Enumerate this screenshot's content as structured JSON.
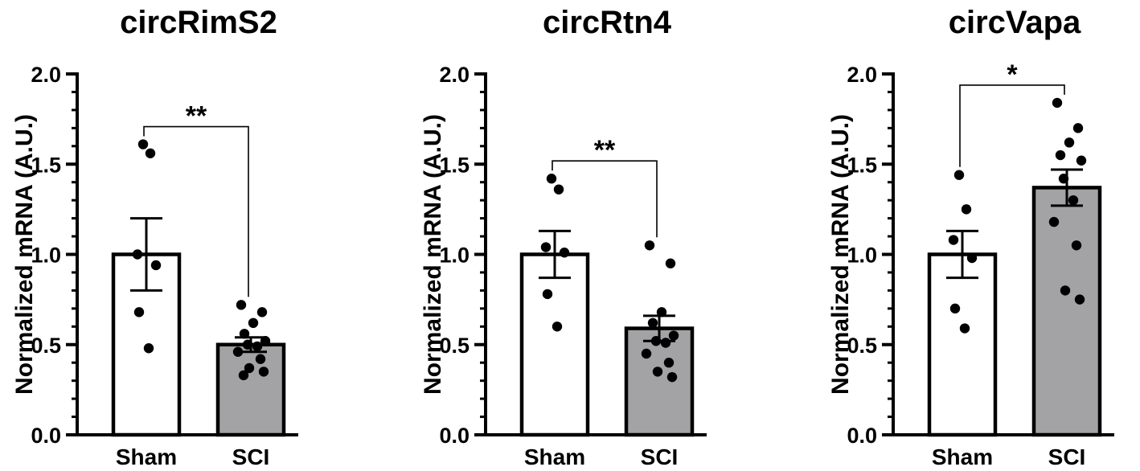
{
  "chart_data": [
    {
      "type": "bar",
      "title": "circRimS2",
      "ylabel": "Normalized mRNA (A.U.)",
      "ylim": [
        0,
        2.0
      ],
      "yticks": [
        "0.0",
        "0.5",
        "1.0",
        "1.5",
        "2.0"
      ],
      "categories": [
        "Sham",
        "SCI"
      ],
      "values": [
        1.0,
        0.5
      ],
      "sem": [
        0.2,
        0.04
      ],
      "bar_colors": [
        "#ffffff",
        "#a3a3a6"
      ],
      "points": [
        [
          1.61,
          1.56,
          1.0,
          0.94,
          0.68,
          0.48
        ],
        [
          0.72,
          0.68,
          0.62,
          0.56,
          0.52,
          0.5,
          0.49,
          0.46,
          0.42,
          0.37,
          0.35,
          0.33
        ]
      ],
      "significance": "**"
    },
    {
      "type": "bar",
      "title": "circRtn4",
      "ylabel": "Normalized mRNA (A.U.)",
      "ylim": [
        0,
        2.0
      ],
      "yticks": [
        "0.0",
        "0.5",
        "1.0",
        "1.5",
        "2.0"
      ],
      "categories": [
        "Sham",
        "SCI"
      ],
      "values": [
        1.0,
        0.59
      ],
      "sem": [
        0.13,
        0.07
      ],
      "bar_colors": [
        "#ffffff",
        "#a3a3a6"
      ],
      "points": [
        [
          1.42,
          1.36,
          1.04,
          1.01,
          0.78,
          0.6
        ],
        [
          1.05,
          0.95,
          0.68,
          0.62,
          0.55,
          0.52,
          0.51,
          0.45,
          0.4,
          0.35,
          0.32
        ]
      ],
      "significance": "**"
    },
    {
      "type": "bar",
      "title": "circVapa",
      "ylabel": "Normalized mRNA (A.U.)",
      "ylim": [
        0,
        2.0
      ],
      "yticks": [
        "0.0",
        "0.5",
        "1.0",
        "1.5",
        "2.0"
      ],
      "categories": [
        "Sham",
        "SCI"
      ],
      "values": [
        1.0,
        1.37
      ],
      "sem": [
        0.13,
        0.1
      ],
      "bar_colors": [
        "#ffffff",
        "#a3a3a6"
      ],
      "points": [
        [
          1.44,
          1.25,
          1.08,
          0.98,
          0.7,
          0.59
        ],
        [
          1.84,
          1.7,
          1.62,
          1.55,
          1.52,
          1.42,
          1.3,
          1.18,
          1.05,
          0.8,
          0.75
        ]
      ],
      "significance": "*"
    }
  ]
}
